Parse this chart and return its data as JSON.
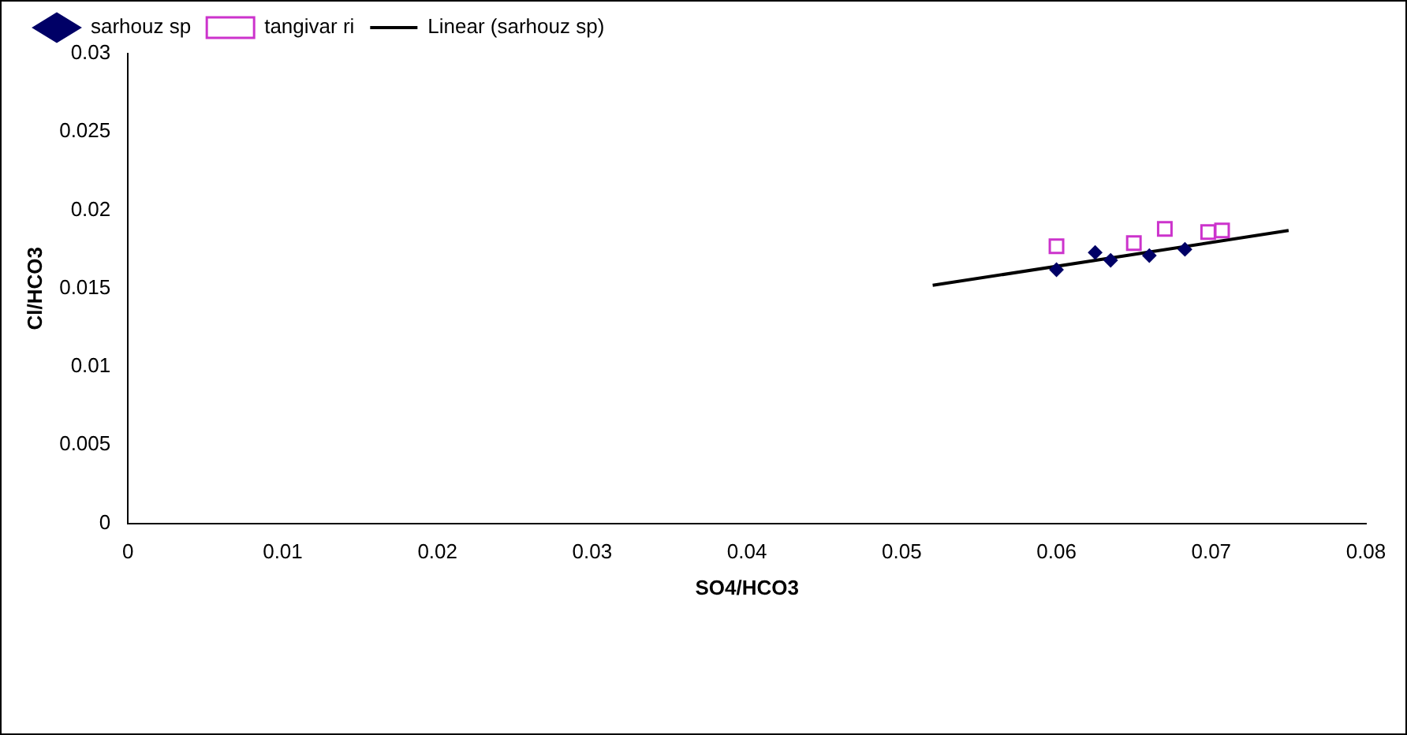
{
  "chart_data": {
    "type": "scatter",
    "xlabel": "SO4/HCO3",
    "ylabel": "Cl/HCO3",
    "legend": "top",
    "grid": false,
    "xlim": [
      0,
      0.08
    ],
    "xticks": [
      0,
      0.01,
      0.02,
      0.03,
      0.04,
      0.05,
      0.06,
      0.07,
      0.08
    ],
    "ylim": [
      0,
      0.03
    ],
    "yticks": [
      0,
      0.005,
      0.01,
      0.015,
      0.02,
      0.025,
      0.03
    ],
    "series": [
      {
        "name": "sarhouz sp",
        "color": "#000066",
        "marker": "diamond",
        "x": [
          0.06,
          0.0625,
          0.0635,
          0.066,
          0.0683
        ],
        "values": [
          0.0162,
          0.0173,
          0.0168,
          0.0171,
          0.0175
        ]
      },
      {
        "name": "tangivar ri",
        "color": "#cc33cc",
        "marker": "square",
        "x": [
          0.06,
          0.065,
          0.067,
          0.0698,
          0.0707
        ],
        "values": [
          0.0177,
          0.0179,
          0.0188,
          0.0186,
          0.0187
        ]
      },
      {
        "name": "Linear (sarhouz sp)",
        "type": "line",
        "color": "#000000",
        "marker": "none",
        "x": [
          0.052,
          0.075
        ],
        "values": [
          0.0152,
          0.0187
        ]
      }
    ]
  }
}
